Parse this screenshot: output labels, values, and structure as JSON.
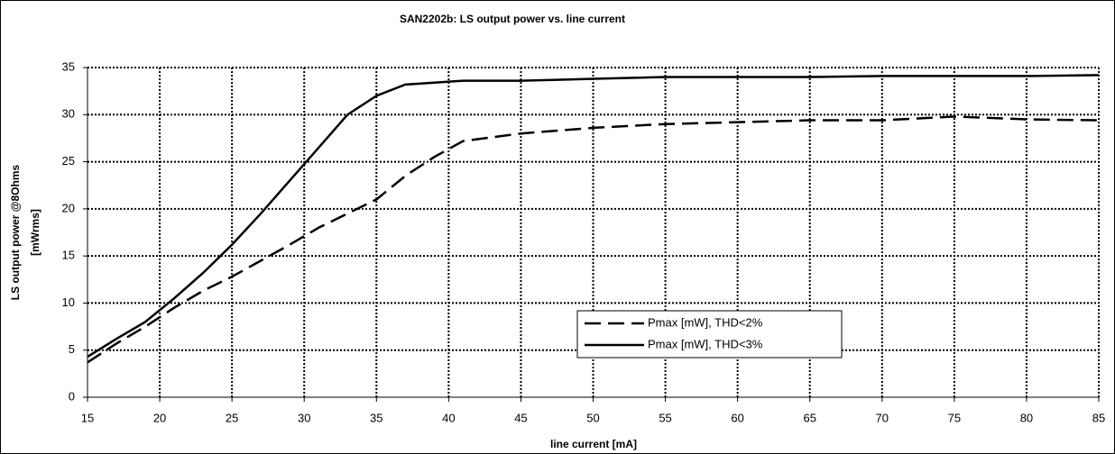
{
  "chart_data": {
    "type": "line",
    "title": "SAN2202b: LS output power vs. line current",
    "x_label": "line current [mA]",
    "y_label": [
      "LS output power @8Ohms",
      "[mWrms]"
    ],
    "x": [
      15,
      17,
      19,
      21,
      23,
      25,
      27,
      29,
      31,
      33,
      35,
      37,
      39,
      41,
      45,
      50,
      55,
      60,
      65,
      70,
      75,
      80,
      85
    ],
    "series": [
      {
        "name": "Pmax [mW], THD<2%",
        "color": "#000000",
        "line_style": "dashed",
        "values": [
          3.7,
          5.7,
          7.5,
          9.5,
          11.3,
          12.8,
          14.5,
          16.2,
          18,
          19.5,
          21,
          23.5,
          25.5,
          27.2,
          28,
          28.6,
          29,
          29.2,
          29.4,
          29.4,
          29.8,
          29.5,
          29.4
        ]
      },
      {
        "name": "Pmax [mW], THD<3%",
        "color": "#000000",
        "line_style": "solid",
        "values": [
          4.3,
          6.2,
          8,
          10.5,
          13.2,
          16.2,
          19.5,
          23,
          26.5,
          30,
          32,
          33.2,
          33.4,
          33.6,
          33.6,
          33.8,
          34,
          34,
          34,
          34.1,
          34.1,
          34.1,
          34.2
        ]
      }
    ],
    "xlim": [
      15,
      85
    ],
    "xticks": [
      15,
      20,
      25,
      30,
      35,
      40,
      45,
      50,
      55,
      60,
      65,
      70,
      75,
      80,
      85
    ],
    "ylim": [
      0,
      35
    ],
    "yticks": [
      0,
      5,
      10,
      15,
      20,
      25,
      30,
      35
    ],
    "grid": true,
    "legend": "lower-center"
  }
}
